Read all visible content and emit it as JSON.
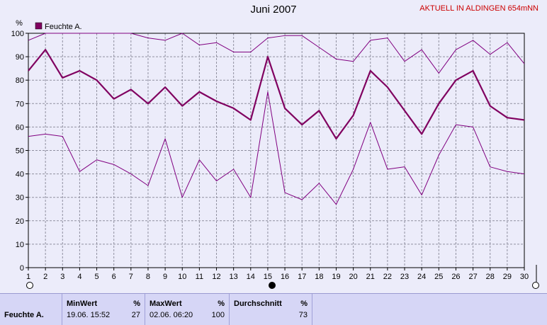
{
  "header": {
    "title": "Juni 2007",
    "badge": "AKTUELL IN ALDINGEN 654mNN"
  },
  "chart_data": {
    "type": "line",
    "title": "Juni 2007",
    "ylabel": "%",
    "ylim": [
      0,
      100
    ],
    "yticks": [
      0,
      10,
      20,
      30,
      40,
      50,
      60,
      70,
      80,
      90,
      100
    ],
    "x": [
      1,
      2,
      3,
      4,
      5,
      6,
      7,
      8,
      9,
      10,
      11,
      12,
      13,
      14,
      15,
      16,
      17,
      18,
      19,
      20,
      21,
      22,
      23,
      24,
      25,
      26,
      27,
      28,
      29,
      30
    ],
    "grid": true,
    "legend": {
      "placement": "top-left",
      "entry": "Feuchte A."
    },
    "series": [
      {
        "name": "Feuchte A.",
        "role": "average",
        "values": [
          84,
          93,
          81,
          84,
          80,
          72,
          76,
          70,
          77,
          69,
          75,
          71,
          68,
          63,
          90,
          68,
          61,
          67,
          55,
          65,
          84,
          77,
          67,
          57,
          70,
          80,
          84,
          69,
          64,
          63
        ]
      },
      {
        "role": "max",
        "values": [
          97,
          100,
          100,
          100,
          100,
          100,
          100,
          98,
          97,
          100,
          95,
          96,
          92,
          92,
          98,
          99,
          99,
          94,
          89,
          88,
          97,
          98,
          88,
          93,
          83,
          93,
          97,
          91,
          96,
          87
        ]
      },
      {
        "role": "min",
        "values": [
          56,
          57,
          56,
          41,
          46,
          44,
          40,
          35,
          55,
          30,
          46,
          37,
          42,
          30,
          75,
          32,
          29,
          36,
          27,
          42,
          62,
          42,
          43,
          31,
          48,
          61,
          60,
          43,
          41,
          40
        ]
      }
    ],
    "colors": {
      "line": "#800080",
      "avg_line": "#800060",
      "grid": "#9090a0",
      "plot_bg": "#ececfa"
    }
  },
  "stats": {
    "row_label": "Feuchte A.",
    "min": {
      "header": "MinWert",
      "unit": "%",
      "datetime": "19.06.  15:52",
      "value": "27"
    },
    "max": {
      "header": "MaxWert",
      "unit": "%",
      "datetime": "02.06.  06:20",
      "value": "100"
    },
    "avg": {
      "header": "Durchschnitt",
      "unit": "%",
      "value": "73"
    }
  }
}
